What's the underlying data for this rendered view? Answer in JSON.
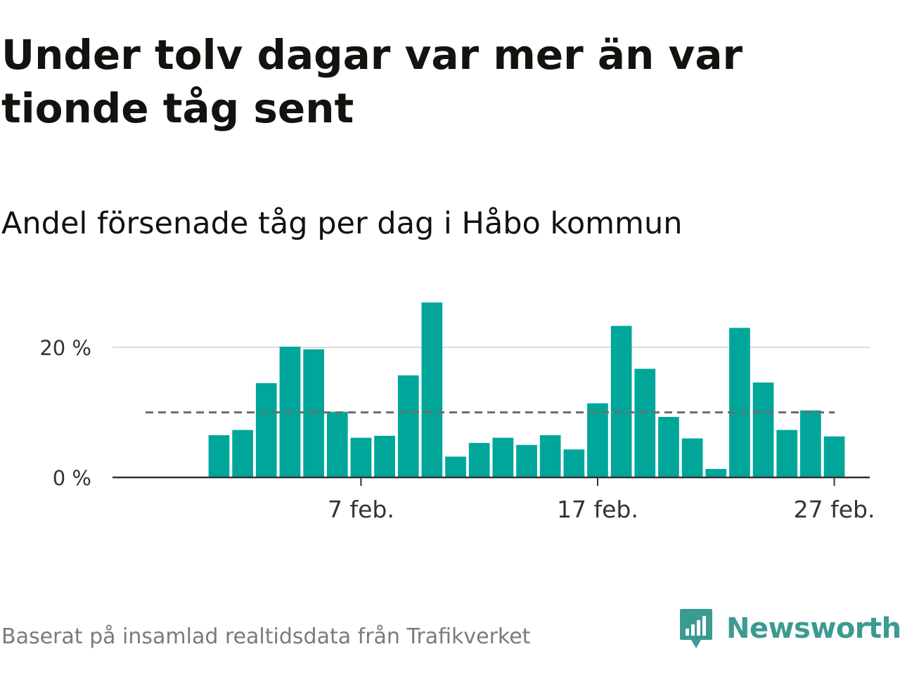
{
  "header": {
    "title": "Under tolv dagar var mer än var tionde tåg sent",
    "subtitle": "Andel försenade tåg per dag i Håbo kommun"
  },
  "chart_data": {
    "type": "bar",
    "x": [
      "2023-02-01",
      "2023-02-02",
      "2023-02-03",
      "2023-02-04",
      "2023-02-05",
      "2023-02-06",
      "2023-02-07",
      "2023-02-08",
      "2023-02-09",
      "2023-02-10",
      "2023-02-11",
      "2023-02-12",
      "2023-02-13",
      "2023-02-14",
      "2023-02-15",
      "2023-02-16",
      "2023-02-17",
      "2023-02-18",
      "2023-02-19",
      "2023-02-20",
      "2023-02-21",
      "2023-02-22",
      "2023-02-23",
      "2023-02-24",
      "2023-02-25",
      "2023-02-26",
      "2023-02-27",
      "2023-02-28"
    ],
    "values": [
      6.5,
      7.3,
      14.5,
      20.1,
      19.7,
      10.1,
      6.1,
      6.4,
      15.7,
      26.9,
      3.2,
      5.3,
      6.1,
      5.0,
      6.5,
      4.3,
      11.4,
      23.3,
      16.7,
      9.3,
      6.0,
      1.3,
      23.0,
      14.6,
      7.3,
      10.3,
      6.3,
      0
    ],
    "bar_count": 27,
    "reference_line": {
      "value": 10,
      "style": "dashed"
    },
    "xlabel": "",
    "ylabel": "",
    "ylim": [
      0,
      28.5
    ],
    "xlim": [
      "2023-01-28",
      "2023-03-01"
    ],
    "y_ticks": [
      {
        "value": 0,
        "label": "0 %"
      },
      {
        "value": 20,
        "label": "20 %"
      }
    ],
    "x_ticks": [
      {
        "date": "2023-02-07",
        "label": "7 feb."
      },
      {
        "date": "2023-02-17",
        "label": "17 feb."
      },
      {
        "date": "2023-02-27",
        "label": "27 feb."
      }
    ],
    "grid": true,
    "legend": "none",
    "colors": {
      "bar": "#00a69a",
      "reference": "#6e6e6e",
      "grid": "#dcdcdc",
      "axis": "#333333",
      "tick_text": "#333333"
    }
  },
  "footer": {
    "source": "Baserat på insamlad realtidsdata från Trafikverket",
    "brand_name": "Newsworthy",
    "brand_icon": "newsworthy-logo-icon",
    "brand_color": "#3a9b91"
  }
}
